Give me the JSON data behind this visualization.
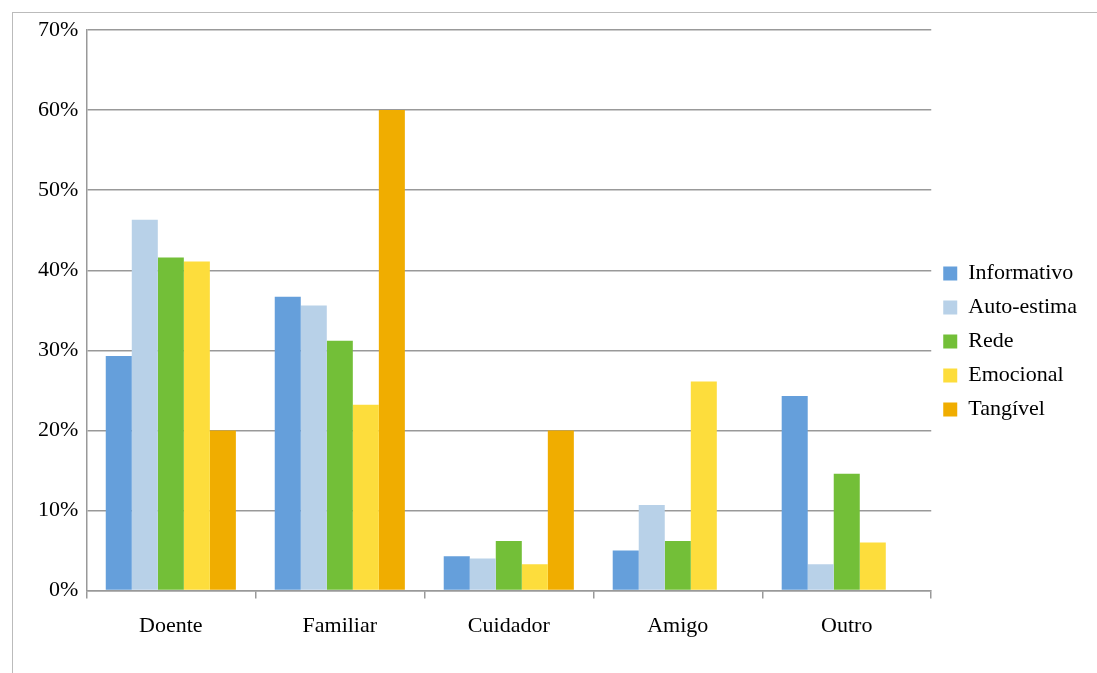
{
  "chart_data": {
    "type": "bar",
    "categories": [
      "Doente",
      "Familiar",
      "Cuidador",
      "Amigo",
      "Outro"
    ],
    "series": [
      {
        "name": "Informativo",
        "color": "#659fdb",
        "values": [
          29.3,
          36.7,
          4.3,
          5.0,
          24.3
        ]
      },
      {
        "name": "Auto-estima",
        "color": "#b8d1e8",
        "values": [
          46.3,
          35.6,
          4.0,
          10.7,
          3.3
        ]
      },
      {
        "name": "Rede",
        "color": "#73bf38",
        "values": [
          41.6,
          31.2,
          6.2,
          6.2,
          14.6
        ]
      },
      {
        "name": "Emocional",
        "color": "#fddd3c",
        "values": [
          41.1,
          23.2,
          3.3,
          26.1,
          6.0
        ]
      },
      {
        "name": "Tangível",
        "color": "#f0ad00",
        "values": [
          20,
          60,
          20,
          null,
          null
        ]
      }
    ],
    "ylim": [
      0,
      70
    ],
    "yticks": [
      {
        "value": 0,
        "label": "0%"
      },
      {
        "value": 10,
        "label": "10%"
      },
      {
        "value": 20,
        "label": "20%"
      },
      {
        "value": 30,
        "label": "30%"
      },
      {
        "value": 40,
        "label": "40%"
      },
      {
        "value": 50,
        "label": "50%"
      },
      {
        "value": 60,
        "label": "60%"
      },
      {
        "value": 70,
        "label": "70%"
      }
    ],
    "grid": "y",
    "legend": "right"
  }
}
